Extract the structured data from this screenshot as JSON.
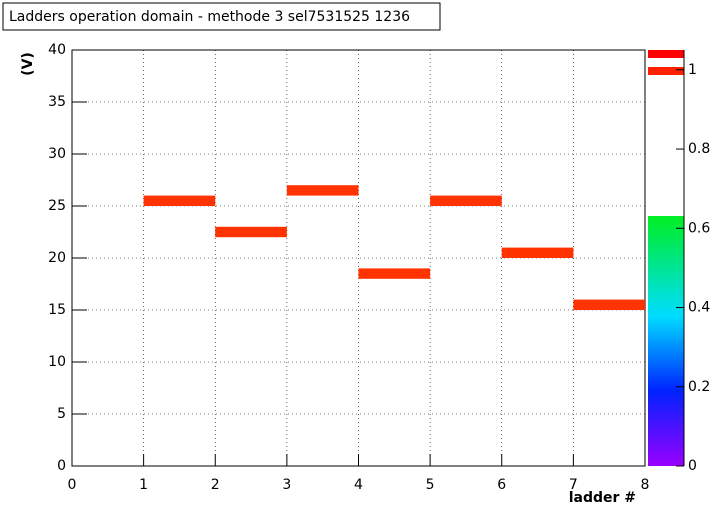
{
  "chart_data": {
    "type": "heatmap",
    "title": "Ladders operation domain - methode 3  sel7531525  1236",
    "x_label": "ladder #",
    "y_label": "(V)",
    "color": "#ff3300",
    "cells": [
      {
        "x": [
          1,
          2
        ],
        "y": [
          25,
          26
        ],
        "z": 1
      },
      {
        "x": [
          2,
          3
        ],
        "y": [
          22,
          23
        ],
        "z": 1
      },
      {
        "x": [
          3,
          4
        ],
        "y": [
          26,
          27
        ],
        "z": 1
      },
      {
        "x": [
          4,
          5
        ],
        "y": [
          18,
          19
        ],
        "z": 1
      },
      {
        "x": [
          5,
          6
        ],
        "y": [
          25,
          26
        ],
        "z": 1
      },
      {
        "x": [
          6,
          7
        ],
        "y": [
          20,
          21
        ],
        "z": 1
      },
      {
        "x": [
          7,
          8
        ],
        "y": [
          15,
          16
        ],
        "z": 1
      }
    ],
    "xlim": [
      0,
      8
    ],
    "xticks": [
      0,
      1,
      2,
      3,
      4,
      5,
      6,
      7,
      8
    ],
    "ylim": [
      0,
      40
    ],
    "yticks": [
      0,
      5,
      10,
      15,
      20,
      25,
      30,
      35,
      40
    ],
    "zlim": [
      0,
      1.05
    ],
    "zticks": [
      0,
      0.2,
      0.4,
      0.6,
      0.8,
      1
    ],
    "grid": true
  }
}
